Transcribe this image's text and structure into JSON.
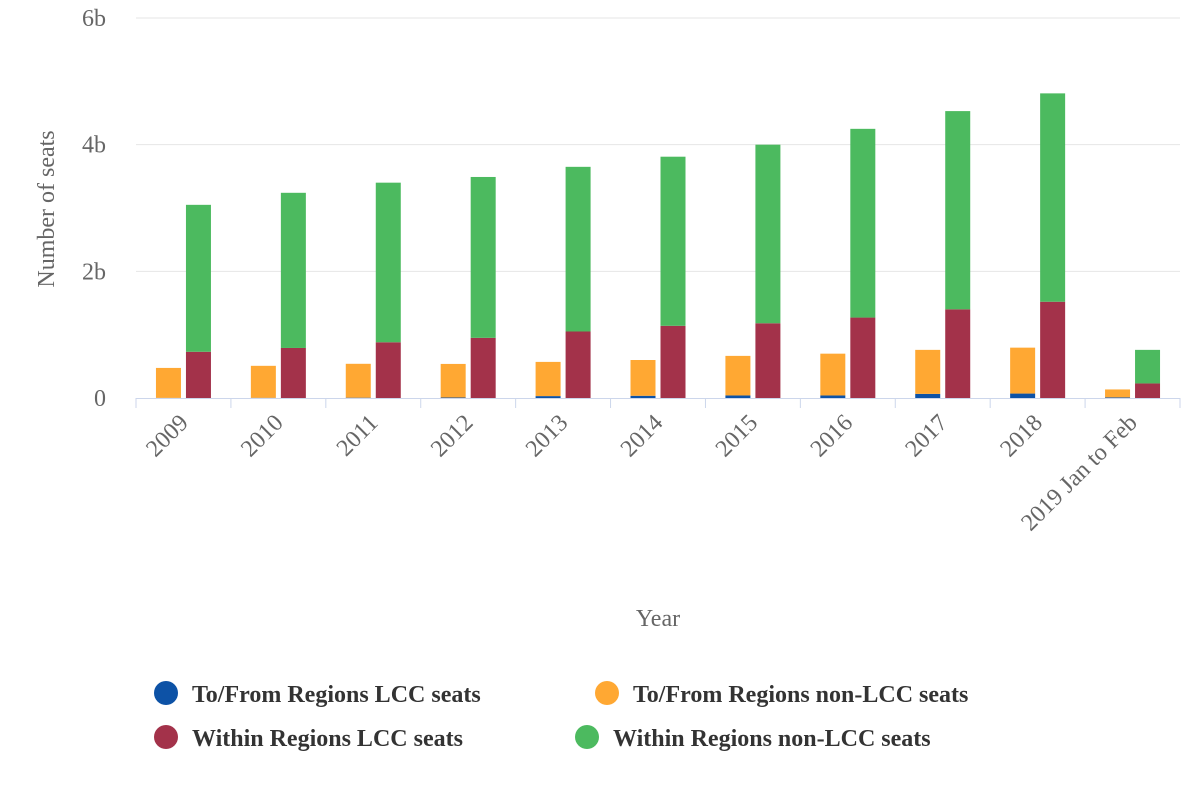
{
  "chart_data": {
    "type": "bar",
    "stacking": "grouped-stacked",
    "categories": [
      "2009",
      "2010",
      "2011",
      "2012",
      "2013",
      "2014",
      "2015",
      "2016",
      "2017",
      "2018",
      "2019 Jan to Feb"
    ],
    "xlabel": "Year",
    "ylabel": "Number of seats",
    "ylim": [
      0,
      6000000000
    ],
    "yticks": [
      {
        "value": 0,
        "label": "0"
      },
      {
        "value": 2000000000,
        "label": "2b"
      },
      {
        "value": 4000000000,
        "label": "4b"
      },
      {
        "value": 6000000000,
        "label": "6b"
      }
    ],
    "grid": true,
    "legend_position": "bottom",
    "stacks": [
      {
        "id": "to-from",
        "series": [
          {
            "name": "To/From Regions LCC seats",
            "color": "#0d52a6",
            "values": [
              2000000,
              3000000,
              5000000,
              8000000,
              30000000,
              35000000,
              40000000,
              40000000,
              65000000,
              70000000,
              10000000
            ]
          },
          {
            "name": "To/From Regions non-LCC seats",
            "color": "#ffa833",
            "values": [
              473000000,
              505000000,
              535000000,
              530000000,
              540000000,
              565000000,
              625000000,
              660000000,
              695000000,
              725000000,
              125000000
            ]
          }
        ]
      },
      {
        "id": "within",
        "series": [
          {
            "name": "Within Regions LCC seats",
            "color": "#a3324a",
            "values": [
              730000000,
              790000000,
              880000000,
              950000000,
              1050000000,
              1140000000,
              1180000000,
              1270000000,
              1400000000,
              1520000000,
              230000000
            ]
          },
          {
            "name": "Within Regions non-LCC seats",
            "color": "#4cba5f",
            "values": [
              2320000000,
              2450000000,
              2520000000,
              2540000000,
              2600000000,
              2670000000,
              2820000000,
              2980000000,
              3130000000,
              3290000000,
              530000000
            ]
          }
        ]
      }
    ],
    "legend": [
      {
        "name": "To/From Regions LCC seats",
        "color": "#0d52a6"
      },
      {
        "name": "To/From Regions non-LCC seats",
        "color": "#ffa833"
      },
      {
        "name": "Within Regions LCC seats",
        "color": "#a3324a"
      },
      {
        "name": "Within Regions non-LCC seats",
        "color": "#4cba5f"
      }
    ]
  }
}
